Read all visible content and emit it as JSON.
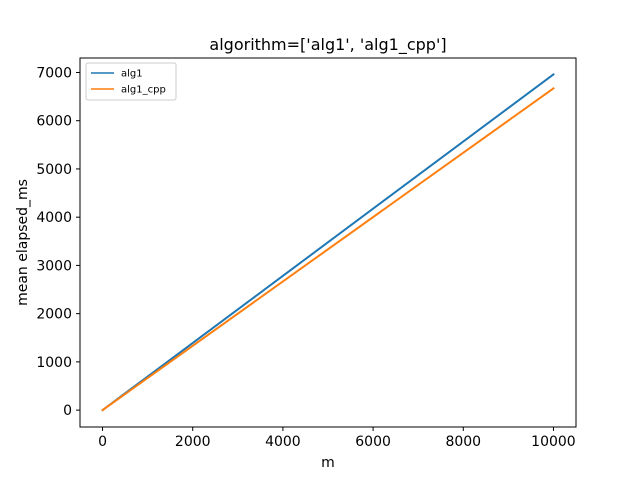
{
  "chart_data": {
    "type": "line",
    "title": "algorithm=['alg1', 'alg1_cpp']",
    "xlabel": "m",
    "ylabel": "mean elapsed_ms",
    "xlim": [
      -500,
      10500
    ],
    "ylim": [
      -350,
      7300
    ],
    "xticks": [
      0,
      2000,
      4000,
      6000,
      8000,
      10000
    ],
    "yticks": [
      0,
      1000,
      2000,
      3000,
      4000,
      5000,
      6000,
      7000
    ],
    "grid": false,
    "legend_position": "upper left",
    "series": [
      {
        "name": "alg1",
        "color": "#1f77b4",
        "x": [
          0,
          10000
        ],
        "y": [
          0,
          6960
        ]
      },
      {
        "name": "alg1_cpp",
        "color": "#ff7f0e",
        "x": [
          0,
          10000
        ],
        "y": [
          0,
          6670
        ]
      }
    ]
  }
}
